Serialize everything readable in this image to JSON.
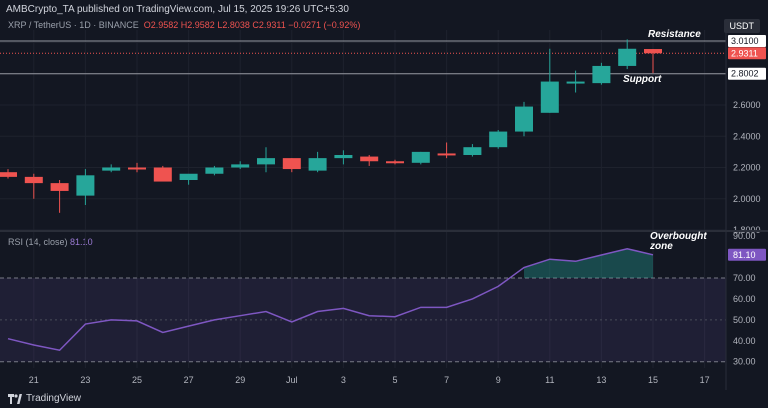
{
  "header": {
    "published": "AMBCrypto_TA published on TradingView.com, Jul 15, 2025 19:26 UTC+5:30",
    "currency": "USDT"
  },
  "legend": {
    "symbol": "XRP / TetherUS · 1D · BINANCE",
    "open": "O2.9582",
    "high": "H2.9582",
    "low": "L2.8038",
    "close": "C2.9311",
    "change": "−0.0271 (−0.92%)"
  },
  "rsi_legend": "RSI (14, close)",
  "rsi_value_text": "81.10",
  "price_badges": {
    "resistance": "3.0100",
    "current": "2.9311",
    "support": "2.8002"
  },
  "annotations": {
    "resistance": "Resistance",
    "support": "Support",
    "overbought": "Overbought zone"
  },
  "footer": {
    "brand": "TradingView"
  },
  "colors": {
    "up": "#26a69a",
    "down": "#ef5350",
    "rsi": "#7e57c2",
    "badge_rsi": "#7e57c2"
  },
  "chart_data": [
    {
      "type": "candlestick",
      "title": "XRP / TetherUS · 1D · BINANCE",
      "x_ticks": [
        "21",
        "23",
        "25",
        "27",
        "29",
        "Jul",
        "3",
        "5",
        "7",
        "9",
        "11",
        "13",
        "15",
        "17"
      ],
      "y_ticks": [
        "3.0000",
        "2.8000",
        "2.6000",
        "2.4000",
        "2.2000",
        "2.0000",
        "1.8000"
      ],
      "ylim": [
        1.8,
        3.08
      ],
      "levels": {
        "resistance": 3.01,
        "support": 2.8002
      },
      "candles": [
        {
          "date": "Jun 20",
          "o": 2.17,
          "h": 2.19,
          "l": 2.13,
          "c": 2.14
        },
        {
          "date": "Jun 21",
          "o": 2.14,
          "h": 2.16,
          "l": 2.0,
          "c": 2.1
        },
        {
          "date": "Jun 22",
          "o": 2.1,
          "h": 2.12,
          "l": 1.91,
          "c": 2.05
        },
        {
          "date": "Jun 23",
          "o": 2.02,
          "h": 2.19,
          "l": 1.96,
          "c": 2.15
        },
        {
          "date": "Jun 24",
          "o": 2.18,
          "h": 2.22,
          "l": 2.17,
          "c": 2.2
        },
        {
          "date": "Jun 25",
          "o": 2.2,
          "h": 2.23,
          "l": 2.17,
          "c": 2.19
        },
        {
          "date": "Jun 26",
          "o": 2.2,
          "h": 2.21,
          "l": 2.12,
          "c": 2.11
        },
        {
          "date": "Jun 27",
          "o": 2.12,
          "h": 2.15,
          "l": 2.09,
          "c": 2.16
        },
        {
          "date": "Jun 28",
          "o": 2.16,
          "h": 2.21,
          "l": 2.15,
          "c": 2.2
        },
        {
          "date": "Jun 29",
          "o": 2.2,
          "h": 2.24,
          "l": 2.19,
          "c": 2.22
        },
        {
          "date": "Jun 30",
          "o": 2.22,
          "h": 2.33,
          "l": 2.17,
          "c": 2.26
        },
        {
          "date": "Jul 1",
          "o": 2.26,
          "h": 2.26,
          "l": 2.17,
          "c": 2.19
        },
        {
          "date": "Jul 2",
          "o": 2.18,
          "h": 2.3,
          "l": 2.17,
          "c": 2.26
        },
        {
          "date": "Jul 3",
          "o": 2.26,
          "h": 2.31,
          "l": 2.22,
          "c": 2.28
        },
        {
          "date": "Jul 4",
          "o": 2.27,
          "h": 2.28,
          "l": 2.21,
          "c": 2.24
        },
        {
          "date": "Jul 5",
          "o": 2.24,
          "h": 2.25,
          "l": 2.22,
          "c": 2.23
        },
        {
          "date": "Jul 6",
          "o": 2.23,
          "h": 2.3,
          "l": 2.22,
          "c": 2.3
        },
        {
          "date": "Jul 7",
          "o": 2.29,
          "h": 2.36,
          "l": 2.26,
          "c": 2.28
        },
        {
          "date": "Jul 8",
          "o": 2.28,
          "h": 2.35,
          "l": 2.27,
          "c": 2.33
        },
        {
          "date": "Jul 9",
          "o": 2.33,
          "h": 2.44,
          "l": 2.32,
          "c": 2.43
        },
        {
          "date": "Jul 10",
          "o": 2.43,
          "h": 2.62,
          "l": 2.4,
          "c": 2.59
        },
        {
          "date": "Jul 11",
          "o": 2.55,
          "h": 2.96,
          "l": 2.55,
          "c": 2.75
        },
        {
          "date": "Jul 12",
          "o": 2.75,
          "h": 2.82,
          "l": 2.68,
          "c": 2.75
        },
        {
          "date": "Jul 13",
          "o": 2.74,
          "h": 2.87,
          "l": 2.73,
          "c": 2.85
        },
        {
          "date": "Jul 14",
          "o": 2.85,
          "h": 3.02,
          "l": 2.83,
          "c": 2.96
        },
        {
          "date": "Jul 15",
          "o": 2.9582,
          "h": 2.9582,
          "l": 2.8038,
          "c": 2.9311
        }
      ]
    },
    {
      "type": "line",
      "title": "RSI (14, close)",
      "y_ticks": [
        "90.00",
        "80.00",
        "70.00",
        "60.00",
        "50.00",
        "40.00",
        "30.00"
      ],
      "ylim": [
        27,
        92
      ],
      "bands": {
        "upper": 70,
        "lower": 30,
        "mid": 50
      },
      "x": [
        "Jun 20",
        "Jun 21",
        "Jun 22",
        "Jun 23",
        "Jun 24",
        "Jun 25",
        "Jun 26",
        "Jun 27",
        "Jun 28",
        "Jun 29",
        "Jun 30",
        "Jul 1",
        "Jul 2",
        "Jul 3",
        "Jul 4",
        "Jul 5",
        "Jul 6",
        "Jul 7",
        "Jul 8",
        "Jul 9",
        "Jul 10",
        "Jul 11",
        "Jul 12",
        "Jul 13",
        "Jul 14",
        "Jul 15"
      ],
      "values": [
        41,
        38,
        35.5,
        48,
        50,
        49.5,
        44,
        47,
        50,
        52,
        54,
        49,
        54,
        55.5,
        52,
        51.5,
        56,
        56,
        60,
        66,
        75,
        79,
        78,
        81,
        84,
        81.1
      ]
    }
  ]
}
